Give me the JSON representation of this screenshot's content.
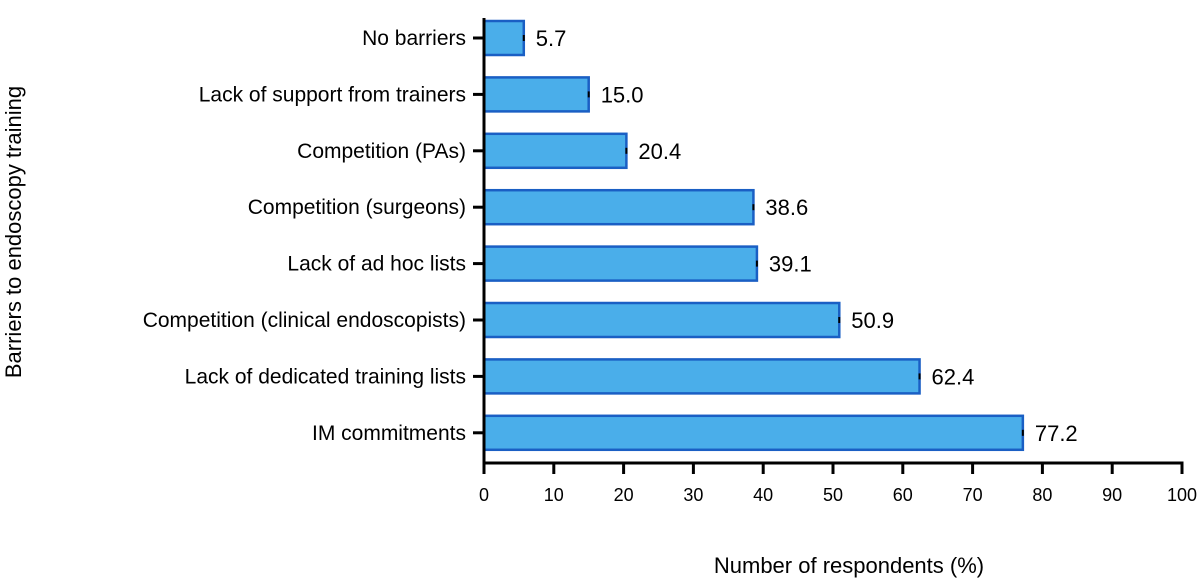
{
  "chart_data": {
    "type": "bar",
    "orientation": "horizontal",
    "categories": [
      "No barriers",
      "Lack of support from trainers",
      "Competition (PAs)",
      "Competition (surgeons)",
      "Lack of ad hoc lists",
      "Competition (clinical endoscopists)",
      "Lack of dedicated training lists",
      "IM commitments"
    ],
    "values": [
      5.7,
      15.0,
      20.4,
      38.6,
      39.1,
      50.9,
      62.4,
      77.2
    ],
    "value_labels": [
      "5.7",
      "15.0",
      "20.4",
      "38.6",
      "39.1",
      "50.9",
      "62.4",
      "77.2"
    ],
    "xlabel": "Number of respondents (%)",
    "ylabel": "Barriers to endoscopy training",
    "xlim": [
      0,
      100
    ],
    "xticks": [
      0,
      10,
      20,
      30,
      40,
      50,
      60,
      70,
      80,
      90,
      100
    ],
    "grid": false,
    "bar_color": "#4aaeea",
    "bar_edge_color": "#1a5fc4",
    "axis_color": "#000000"
  }
}
